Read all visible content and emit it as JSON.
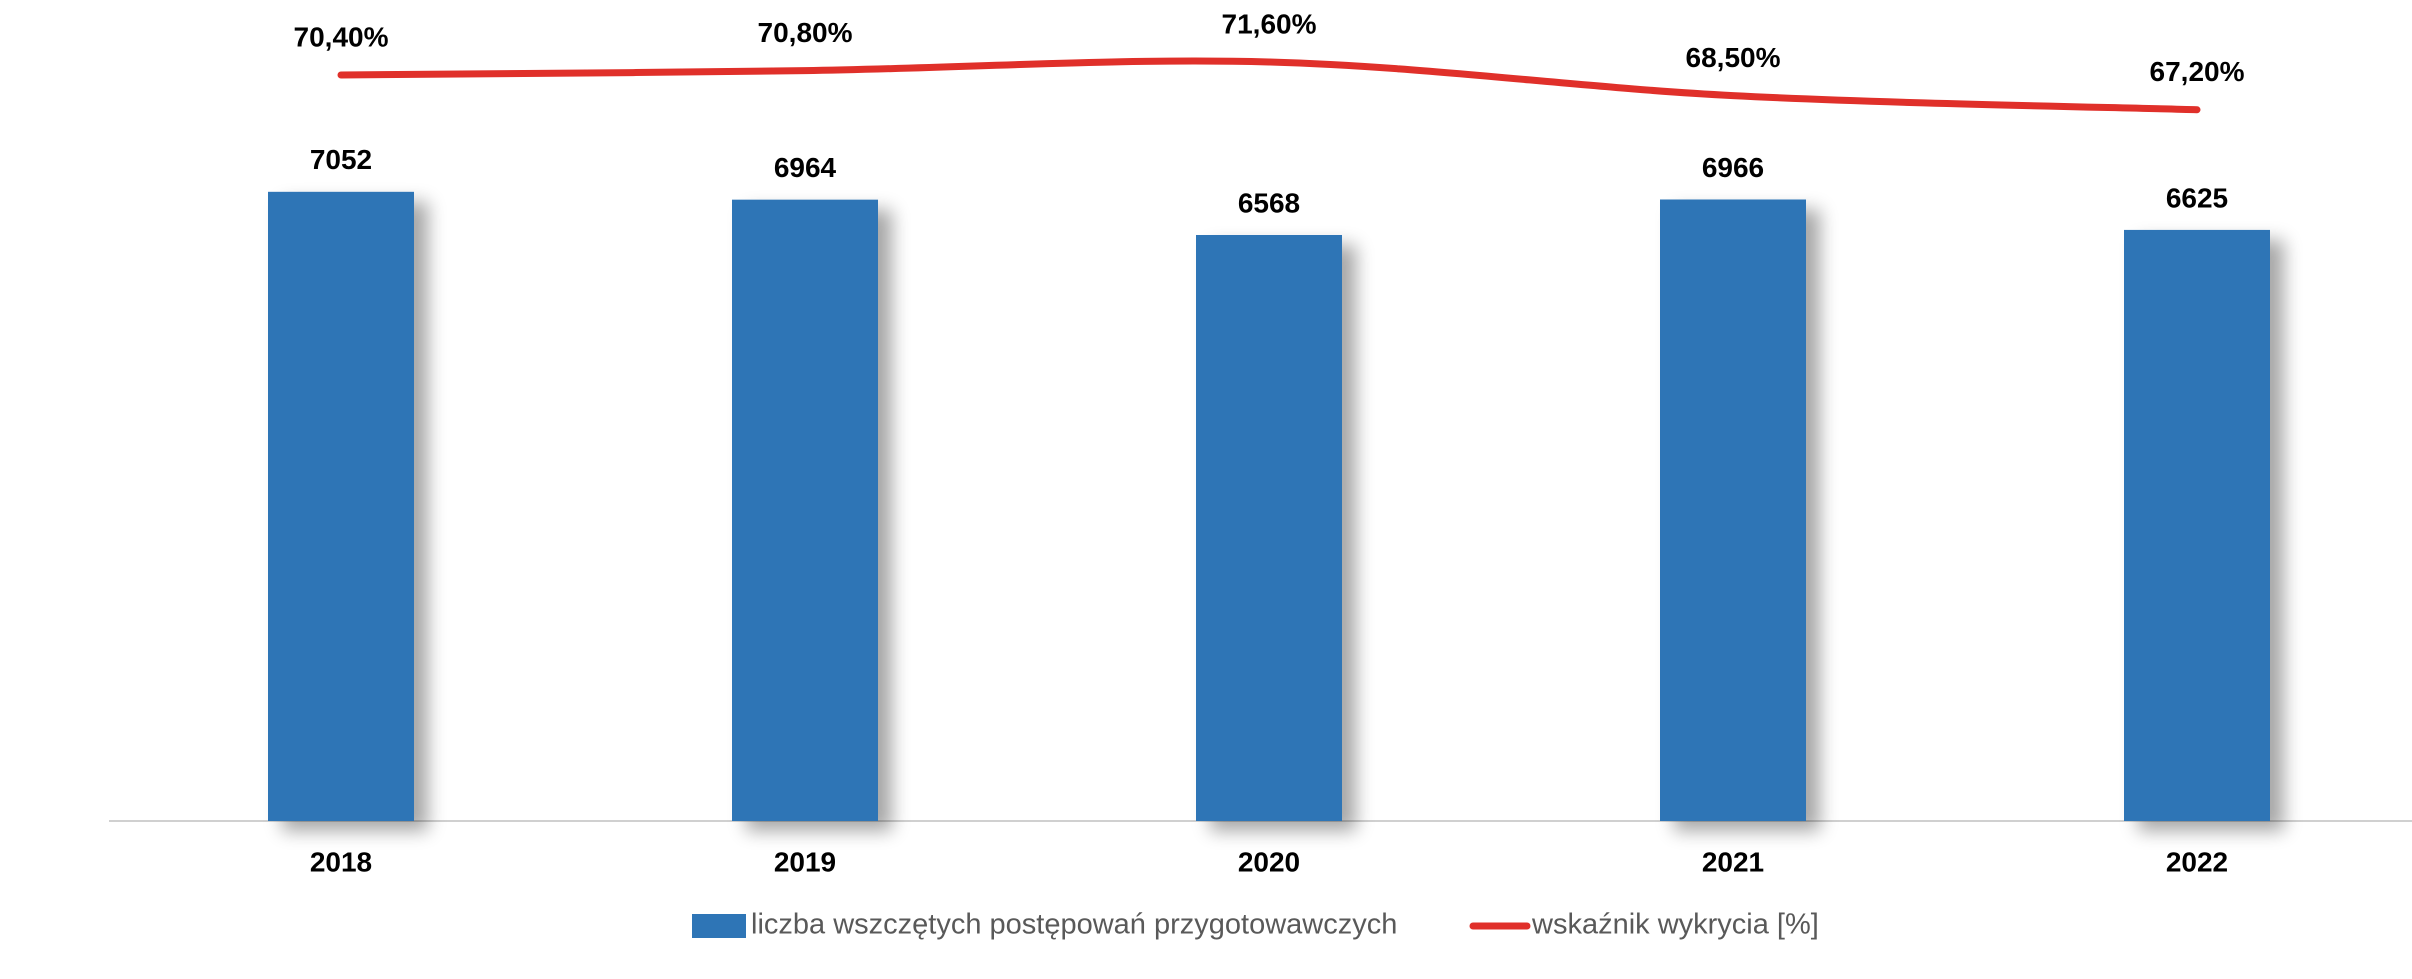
{
  "chart_data": {
    "type": "bar",
    "categories": [
      "2018",
      "2019",
      "2020",
      "2021",
      "2022"
    ],
    "ylim": [
      0,
      7700
    ],
    "y2lim": [
      60,
      75
    ],
    "series": [
      {
        "name": "liczba wszczętych postępowań przygotowawczych",
        "type": "bar",
        "color": "#2e75b6",
        "values": [
          7052,
          6964,
          6568,
          6966,
          6625
        ]
      },
      {
        "name": "wskaźnik wykrycia [%]",
        "type": "line",
        "axis": "y2",
        "color": "#e0302a",
        "values": [
          70.4,
          70.8,
          71.6,
          68.5,
          67.2
        ],
        "value_labels": [
          "70,40%",
          "70,80%",
          "71,60%",
          "68,50%",
          "67,20%"
        ]
      }
    ]
  }
}
